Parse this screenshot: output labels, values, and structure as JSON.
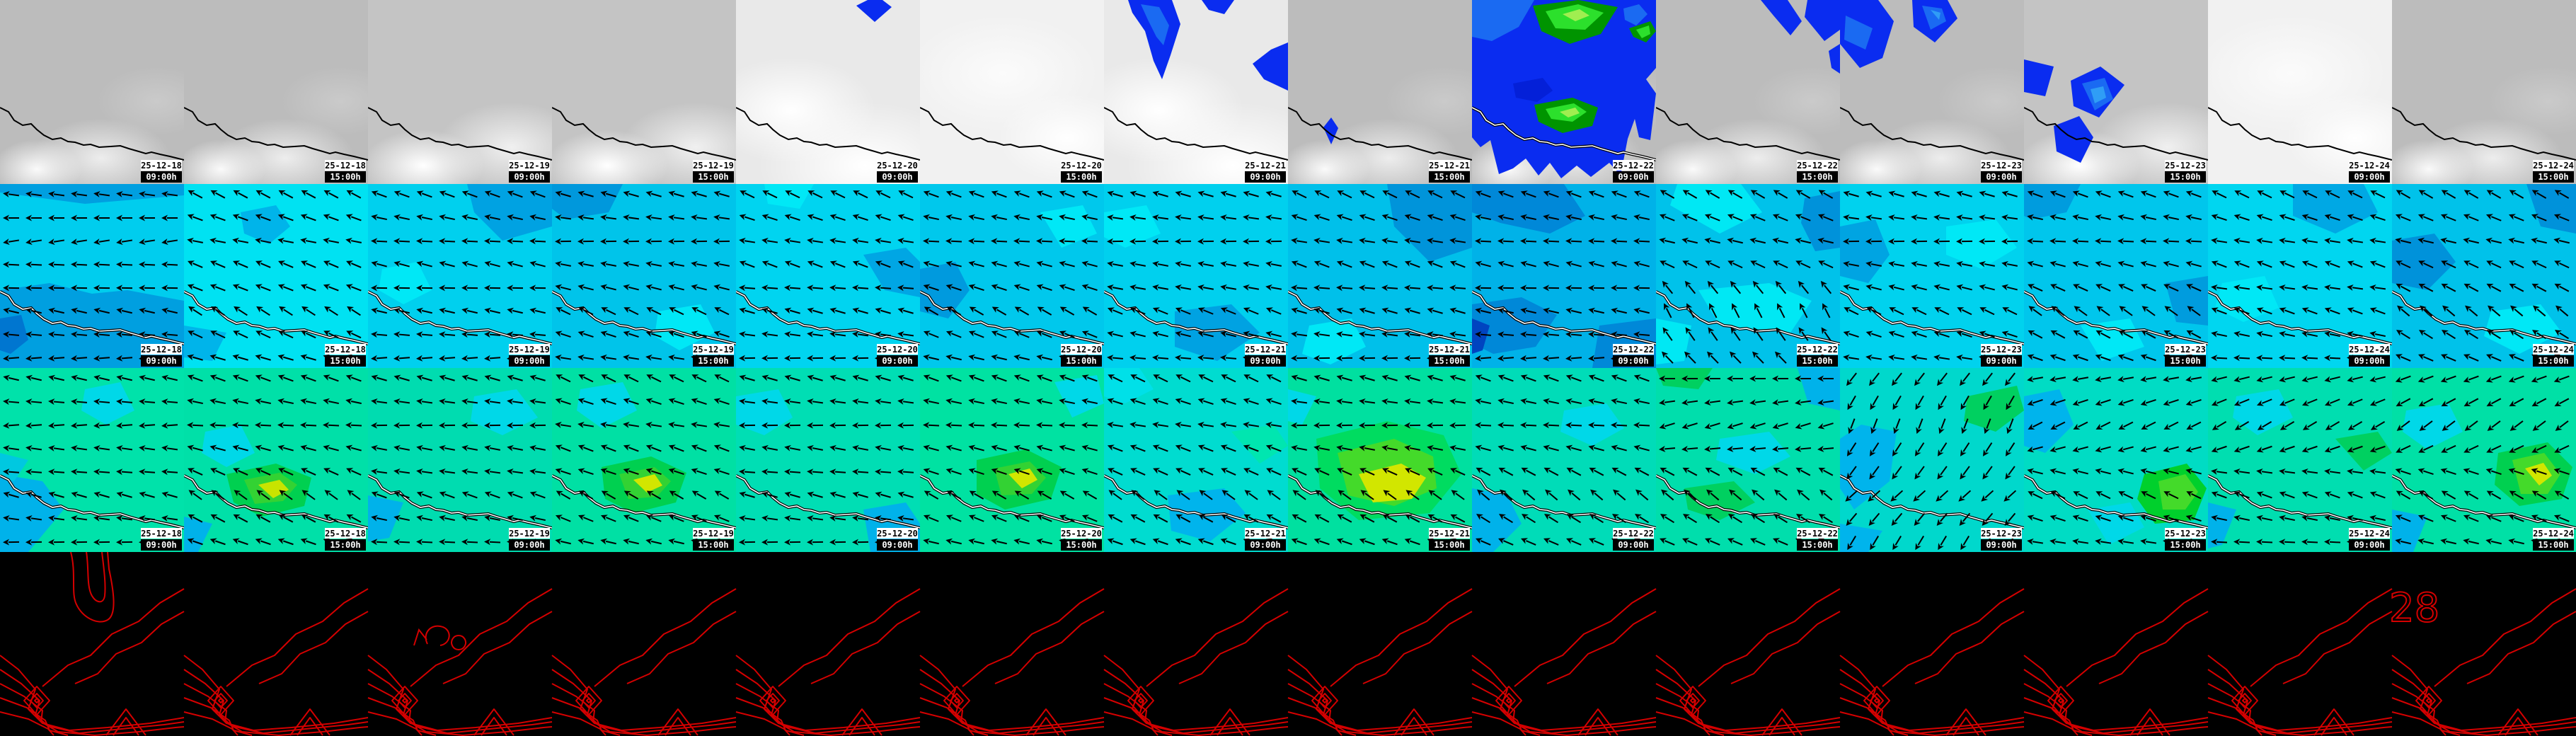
{
  "frames": [
    {
      "date": "25-12-18",
      "time": "09:00h"
    },
    {
      "date": "25-12-18",
      "time": "15:00h"
    },
    {
      "date": "25-12-19",
      "time": "09:00h"
    },
    {
      "date": "25-12-19",
      "time": "15:00h"
    },
    {
      "date": "25-12-20",
      "time": "09:00h"
    },
    {
      "date": "25-12-20",
      "time": "15:00h"
    },
    {
      "date": "25-12-21",
      "time": "09:00h"
    },
    {
      "date": "25-12-21",
      "time": "15:00h"
    },
    {
      "date": "25-12-22",
      "time": "09:00h"
    },
    {
      "date": "25-12-22",
      "time": "15:00h"
    },
    {
      "date": "25-12-23",
      "time": "09:00h"
    },
    {
      "date": "25-12-23",
      "time": "15:00h"
    },
    {
      "date": "25-12-24",
      "time": "09:00h"
    },
    {
      "date": "25-12-24",
      "time": "15:00h"
    }
  ],
  "palette": {
    "precip_blue": "#0a2cf0",
    "precip_blue_light": "#1a6af2",
    "precip_blue_pale": "#2f9df6",
    "precip_green_dark": "#009400",
    "precip_green": "#2ce02c",
    "precip_green_light": "#a0ee50",
    "contour_red": "#d40000",
    "coast_black": "#000000",
    "coast_white": "#ffffff"
  },
  "rows": {
    "clouds": {
      "tiles": [
        {
          "sky": "sky-gray",
          "patches": []
        },
        {
          "sky": "sky-gray",
          "patches": []
        },
        {
          "sky": "sky-gray2",
          "patches": []
        },
        {
          "sky": "sky-gray2",
          "patches": []
        },
        {
          "sky": "sky-white",
          "patches": [
            {
              "c": "#0a2cf0",
              "p": "170,8 186,0 207,0 220,10 196,31"
            }
          ]
        },
        {
          "sky": "sky-white2",
          "patches": []
        },
        {
          "sky": "sky-white",
          "patches": [
            {
              "c": "#0a2cf0",
              "p": "34,0 96,0 108,34 94,78 82,112 70,86 58,44 40,18"
            },
            {
              "c": "#1a6af2",
              "p": "52,6 78,10 92,36 84,64 74,52 62,28"
            },
            {
              "c": "#0a2cf0",
              "p": "138,0 184,0 170,20 148,14"
            },
            {
              "c": "#0a2cf0",
              "p": "260,60 260,128 226,112 210,90 236,70"
            }
          ]
        },
        {
          "sky": "sky-gray",
          "patches": [
            {
              "c": "#0a2cf0",
              "p": "50,180 61,166 71,181 61,204"
            }
          ]
        },
        {
          "sky": "sky-gray",
          "coast": "outlined",
          "patches": [
            {
              "c": "#0a2cf0",
              "p": "0,0 260,0 260,96 246,112 260,132 252,198 236,194 230,168 220,196 210,248 194,230 168,250 148,234 126,252 110,230 94,248 76,224 58,238 38,246 26,198 12,208 0,194"
            },
            {
              "c": "#1a6af2",
              "p": "0,0 88,0 66,38 28,58 0,52"
            },
            {
              "c": "#009400",
              "p": "86,8 150,0 206,10 182,48 138,62 98,44"
            },
            {
              "c": "#2ce02c",
              "p": "104,16 150,6 186,18 160,42 118,40"
            },
            {
              "c": "#a0ee50",
              "p": "128,20 152,13 166,22 146,30"
            },
            {
              "c": "#1a6af2",
              "p": "214,12 236,6 248,20 232,36 216,28"
            },
            {
              "c": "#009400",
              "p": "222,40 252,30 260,44 246,60 228,52"
            },
            {
              "c": "#2ce02c",
              "p": "232,42 250,36 252,48 240,54"
            },
            {
              "c": "#0420d8",
              "p": "58,118 100,110 114,128 92,144 62,138"
            },
            {
              "c": "#009400",
              "p": "88,148 142,138 178,152 170,178 128,188 94,172"
            },
            {
              "c": "#2ce02c",
              "p": "104,154 144,146 162,158 142,172 112,168"
            },
            {
              "c": "#a0ee50",
              "p": "124,158 146,152 152,160 136,166"
            }
          ]
        },
        {
          "sky": "sky-gray",
          "patches": [
            {
              "c": "#0a2cf0",
              "p": "148,0 186,0 206,30 190,50 166,22"
            },
            {
              "c": "#0a2cf0",
              "p": "214,0 260,0 260,42 238,58 210,24"
            },
            {
              "c": "#0a2cf0",
              "p": "244,72 260,62 260,104 248,96"
            }
          ]
        },
        {
          "sky": "sky-gray",
          "patches": [
            {
              "c": "#0a2cf0",
              "p": "0,0 54,0 76,30 60,82 28,96 0,62"
            },
            {
              "c": "#1a6af2",
              "p": "8,22 46,40 36,70 6,56"
            },
            {
              "c": "#0a2cf0",
              "p": "102,0 152,0 166,26 134,60 104,38"
            },
            {
              "c": "#1a6af2",
              "p": "116,8 144,12 150,30 128,42"
            },
            {
              "c": "#2f9df6",
              "p": "128,14 142,18 140,28"
            }
          ]
        },
        {
          "sky": "sky-gray2",
          "patches": [
            {
              "c": "#0a2cf0",
              "p": "0,84 42,94 30,136 0,130"
            },
            {
              "c": "#0a2cf0",
              "p": "66,114 108,94 142,120 106,166 70,150"
            },
            {
              "c": "#1a6af2",
              "p": "82,118 114,110 126,140 100,156"
            },
            {
              "c": "#2f9df6",
              "p": "94,126 112,122 116,138 100,146"
            },
            {
              "c": "#0a2cf0",
              "p": "42,178 78,164 98,194 80,230 46,214"
            }
          ]
        },
        {
          "sky": "sky-white2",
          "patches": []
        },
        {
          "sky": "sky-gray",
          "patches": []
        }
      ]
    },
    "windA": {
      "tiles": [
        {
          "base": "#00cdee",
          "tiltTop": 0,
          "tiltBottom": -5,
          "patches": [
            {
              "c": "#009fe0",
              "p": "0,150 70,140 130,155 180,150 260,165 260,260 0,260"
            },
            {
              "c": "#009fe0",
              "p": "0,0 260,0 260,16 120,28 0,12"
            },
            {
              "c": "#0076d0",
              "p": "0,190 30,185 40,220 15,240 0,235"
            }
          ]
        },
        {
          "base": "#00e2f2",
          "tiltTop": -20,
          "tiltBottom": -25,
          "patches": [
            {
              "c": "#00b4ea",
              "p": "80,40 130,30 150,60 120,85 85,70"
            },
            {
              "c": "#00b4ea",
              "p": "0,200 60,210 40,250 0,245"
            }
          ]
        },
        {
          "base": "#00d0ee",
          "tiltTop": -12,
          "tiltBottom": -5,
          "patches": [
            {
              "c": "#00a2e2",
              "p": "140,0 260,0 260,60 190,80 150,40"
            },
            {
              "c": "#00e8f6",
              "p": "20,120 70,110 90,150 50,170 15,150"
            }
          ]
        },
        {
          "base": "#00c4ea",
          "tiltTop": -8,
          "tiltBottom": -18,
          "patches": [
            {
              "c": "#0098dc",
              "p": "0,0 100,0 80,40 20,50 0,35"
            },
            {
              "c": "#00e8f6",
              "p": "150,180 210,170 230,210 180,235 145,215"
            }
          ]
        },
        {
          "base": "#00d4f0",
          "tiltTop": -18,
          "tiltBottom": -8,
          "patches": [
            {
              "c": "#00a6e4",
              "p": "180,100 240,90 260,110 260,160 210,150"
            },
            {
              "c": "#00e8f6",
              "p": "40,0 110,0 90,35 45,28"
            }
          ]
        },
        {
          "base": "#00c8ec",
          "tiltTop": -12,
          "tiltBottom": -22,
          "patches": [
            {
              "c": "#009ade",
              "p": "0,120 50,110 70,150 40,190 0,180"
            },
            {
              "c": "#00e8f6",
              "p": "170,40 230,30 250,70 200,90"
            }
          ]
        },
        {
          "base": "#00d0ee",
          "tiltTop": -8,
          "tiltBottom": -14,
          "patches": [
            {
              "c": "#00a2e2",
              "p": "100,180 180,170 220,210 160,250 100,230"
            },
            {
              "c": "#00e8f6",
              "p": "0,40 60,30 80,70 30,90 0,75"
            }
          ]
        },
        {
          "base": "#00c0ea",
          "tiltTop": -18,
          "tiltBottom": -8,
          "patches": [
            {
              "c": "#0094da",
              "p": "140,0 260,0 260,90 200,110 150,60"
            },
            {
              "c": "#00e8f6",
              "p": "30,200 90,190 110,230 60,255 20,240"
            }
          ]
        },
        {
          "base": "#00b2e8",
          "tiltTop": -12,
          "tiltBottom": -5,
          "patches": [
            {
              "c": "#0088d8",
              "p": "0,0 130,0 160,45 110,70 40,55 0,40"
            },
            {
              "c": "#0088d8",
              "p": "0,170 70,160 120,185 90,230 30,240 0,225"
            },
            {
              "c": "#0044c0",
              "p": "0,190 25,200 15,235 0,240"
            },
            {
              "c": "#0088d8",
              "p": "180,200 260,190 260,260 170,260"
            }
          ]
        },
        {
          "base": "#00c2ea",
          "tiltTop": -22,
          "tiltBottom": -55,
          "patches": [
            {
              "c": "#00e8f4",
              "p": "30,0 120,0 150,40 90,70 20,30"
            },
            {
              "c": "#0092da",
              "p": "210,20 260,10 260,90 225,95 205,55"
            },
            {
              "c": "#00e8f4",
              "p": "60,150 160,140 220,165 190,210 90,200"
            },
            {
              "c": "#00e8f4",
              "p": "0,190 50,200 40,250 0,255"
            }
          ]
        },
        {
          "base": "#00d2ee",
          "tiltTop": -8,
          "tiltBottom": -18,
          "patches": [
            {
              "c": "#00a4e2",
              "p": "0,60 50,50 70,100 40,140 0,130"
            },
            {
              "c": "#00e8f6",
              "p": "150,60 220,50 250,90 200,120 150,100"
            }
          ]
        },
        {
          "base": "#00c6ec",
          "tiltTop": -12,
          "tiltBottom": -28,
          "patches": [
            {
              "c": "#009cde",
              "p": "0,0 80,0 60,40 10,50 0,45"
            },
            {
              "c": "#009cde",
              "p": "200,140 260,130 260,200 215,195"
            },
            {
              "c": "#00e8f6",
              "p": "80,200 150,190 170,230 110,250"
            }
          ]
        },
        {
          "base": "#00d6f0",
          "tiltTop": -18,
          "tiltBottom": -12,
          "patches": [
            {
              "c": "#00a8e4",
              "p": "120,0 220,0 240,40 180,70 120,45"
            },
            {
              "c": "#00e8f6",
              "p": "20,140 80,130 100,175 50,195 10,175"
            }
          ]
        },
        {
          "base": "#00c2ea",
          "tiltTop": -22,
          "tiltBottom": -32,
          "patches": [
            {
              "c": "#0092da",
              "p": "0,80 60,70 90,110 50,150 0,140"
            },
            {
              "c": "#0092da",
              "p": "190,0 260,0 260,70 210,60"
            },
            {
              "c": "#00e8f6",
              "p": "140,180 210,170 240,210 180,240 130,215"
            }
          ]
        }
      ]
    },
    "windB": {
      "tiles": [
        {
          "base": "#00e2aa",
          "tiltTop": -5,
          "tiltBottom": -8,
          "patches": [
            {
              "c": "#00d8e8",
              "p": "120,30 170,20 190,60 150,80 115,60"
            },
            {
              "c": "#00b2ea",
              "p": "0,150 60,160 90,200 40,260 0,260"
            },
            {
              "c": "#00c8e0",
              "p": "0,120 40,130 20,160 0,155"
            }
          ]
        },
        {
          "base": "#00e0a8",
          "tiltTop": -12,
          "tiltBottom": -28,
          "patches": [
            {
              "c": "#00d8e8",
              "p": "30,90 80,80 100,120 60,140 25,120"
            },
            {
              "c": "#00b2ea",
              "p": "0,210 40,220 20,260 0,260"
            },
            {
              "c": "#00d050",
              "p": "60,150 130,135 180,155 170,195 110,210 70,190"
            },
            {
              "c": "#33d233",
              "p": "85,158 135,148 160,165 140,188 100,192"
            },
            {
              "c": "#c8e400",
              "p": "105,165 135,158 148,172 126,184"
            }
          ]
        },
        {
          "base": "#00dcb0",
          "tiltTop": -8,
          "tiltBottom": -12,
          "patches": [
            {
              "c": "#00d8e8",
              "p": "150,40 210,30 240,70 190,95 145,75"
            },
            {
              "c": "#00b2ea",
              "p": "0,180 50,190 30,240 0,245"
            }
          ]
        },
        {
          "base": "#00e0a4",
          "tiltTop": -18,
          "tiltBottom": -22,
          "patches": [
            {
              "c": "#00d8e8",
              "p": "40,30 100,20 120,60 70,85 35,60"
            },
            {
              "c": "#00d050",
              "p": "70,140 140,125 190,148 175,190 115,205 75,185"
            },
            {
              "c": "#33d233",
              "p": "95,150 145,140 168,160 148,182 108,185"
            },
            {
              "c": "#d2e600",
              "p": "115,158 145,150 156,166 134,176"
            }
          ]
        },
        {
          "base": "#00deb4",
          "tiltTop": -8,
          "tiltBottom": -8,
          "patches": [
            {
              "c": "#00d8e8",
              "p": "0,40 60,30 80,70 40,95 0,80"
            },
            {
              "c": "#00b2ea",
              "p": "180,200 240,190 260,220 260,260 190,260"
            }
          ]
        },
        {
          "base": "#00e2a2",
          "tiltTop": -12,
          "tiltBottom": -22,
          "patches": [
            {
              "c": "#00d050",
              "p": "80,130 150,115 200,140 185,185 120,200 80,178"
            },
            {
              "c": "#33d233",
              "p": "105,142 155,132 178,155 158,178 115,180"
            },
            {
              "c": "#d2e600",
              "p": "125,150 155,142 166,158 144,170"
            },
            {
              "c": "#00d8e8",
              "p": "190,20 250,10 260,50 215,70"
            }
          ]
        },
        {
          "base": "#00dcd0",
          "tiltTop": -18,
          "tiltBottom": -28,
          "patches": [
            {
              "c": "#00e0e8",
              "p": "0,0 50,0 70,30 30,50 0,40"
            },
            {
              "c": "#00b4ec",
              "p": "90,180 170,170 200,205 150,245 95,230"
            },
            {
              "c": "#00e6b0",
              "p": "180,90 240,80 260,110 220,135"
            }
          ]
        },
        {
          "base": "#00e0a0",
          "tiltTop": -8,
          "tiltBottom": -28,
          "patches": [
            {
              "c": "#00dc60",
              "p": "40,100 140,75 220,95 245,150 200,205 100,215 45,170"
            },
            {
              "c": "#44da2a",
              "p": "70,120 150,100 205,125 210,170 150,195 85,180"
            },
            {
              "c": "#d2e600",
              "p": "100,150 160,135 195,155 175,185 120,190"
            },
            {
              "c": "#00d8e8",
              "p": "0,30 40,40 20,80 0,75"
            }
          ]
        },
        {
          "base": "#00dcb8",
          "tiltTop": -12,
          "tiltBottom": -32,
          "patches": [
            {
              "c": "#00b2ea",
              "p": "0,170 50,180 70,220 30,260 0,260"
            },
            {
              "c": "#00d8e8",
              "p": "130,60 190,50 215,85 170,110 125,90"
            }
          ]
        },
        {
          "base": "#00deac",
          "tiltTop": 8,
          "tiltBottom": -32,
          "patches": [
            {
              "c": "#00d060",
              "p": "0,0 80,0 60,30 10,25"
            },
            {
              "c": "#00d8e8",
              "p": "90,100 160,90 190,125 140,150 85,130"
            },
            {
              "c": "#00d060",
              "p": "40,170 110,160 140,190 90,215 45,200"
            },
            {
              "c": "#00b2ea",
              "p": "200,0 260,0 260,60 215,50"
            }
          ]
        },
        {
          "base": "#00d8cc",
          "tiltTop": 60,
          "tiltBottom": 50,
          "patches": [
            {
              "c": "#00b4ec",
              "p": "30,80 80,90 70,160 20,200 0,170 0,100"
            },
            {
              "c": "#00d060",
              "p": "180,40 250,25 260,60 220,90 175,75"
            },
            {
              "c": "#00b4ec",
              "p": "0,220 60,230 40,260 0,260"
            }
          ]
        },
        {
          "base": "#00dcc4",
          "tiltTop": 18,
          "tiltBottom": -18,
          "patches": [
            {
              "c": "#00b4ec",
              "p": "0,40 50,30 70,80 30,120 0,110"
            },
            {
              "c": "#00d02c",
              "p": "170,150 230,135 258,170 240,215 185,220 160,185"
            },
            {
              "c": "#44da2a",
              "p": "190,160 228,150 246,175 228,200 196,200"
            },
            {
              "c": "#00d8e8",
              "p": "90,200 150,190 170,225 120,250"
            }
          ]
        },
        {
          "base": "#00deb0",
          "tiltTop": 22,
          "tiltBottom": -12,
          "patches": [
            {
              "c": "#00d8e8",
              "p": "40,40 100,30 120,70 70,95 35,70"
            },
            {
              "c": "#00b2ea",
              "p": "0,190 40,200 20,250 0,255"
            },
            {
              "c": "#00d060",
              "p": "180,100 240,90 260,120 220,145"
            }
          ]
        },
        {
          "base": "#00e0a6",
          "tiltTop": 28,
          "tiltBottom": -22,
          "patches": [
            {
              "c": "#00d050",
              "p": "150,120 220,105 255,140 240,185 180,195 145,165"
            },
            {
              "c": "#44da2a",
              "p": "170,130 215,120 238,150 220,178 182,178"
            },
            {
              "c": "#d2e600",
              "p": "188,142 214,134 226,152 208,166"
            },
            {
              "c": "#00d8e8",
              "p": "20,60 80,50 100,90 50,115 15,90"
            },
            {
              "c": "#00b2ea",
              "p": "0,200 50,210 30,260 0,260"
            }
          ]
        }
      ]
    },
    "contours": {
      "label": "28"
    }
  }
}
